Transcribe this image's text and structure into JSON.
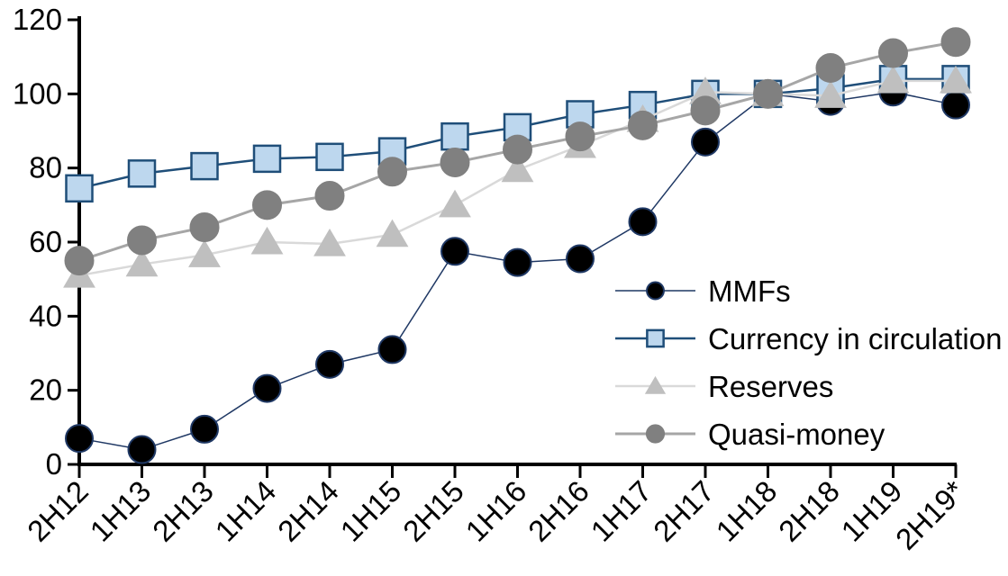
{
  "chart_data": {
    "type": "line",
    "title": "",
    "xlabel": "",
    "ylabel": "",
    "grid": false,
    "legend_position": "center-right",
    "x_tick_rotation": -45,
    "axis_color": "#000000",
    "text_color": "#000000",
    "ylim": [
      0,
      120
    ],
    "yticks": [
      0,
      20,
      40,
      60,
      80,
      100,
      120
    ],
    "categories": [
      "2H12",
      "1H13",
      "2H13",
      "1H14",
      "2H14",
      "1H15",
      "2H15",
      "1H16",
      "2H16",
      "1H17",
      "2H17",
      "1H18",
      "2H18",
      "1H19",
      "2H19*"
    ],
    "series": [
      {
        "name": "MMFs",
        "values": [
          7,
          4,
          9.5,
          20.5,
          27,
          31,
          57.5,
          54.5,
          55.5,
          65.5,
          87,
          100,
          98,
          100.5,
          97
        ],
        "line_color": "#1F3864",
        "line_width": 1.5,
        "marker": {
          "shape": "circle",
          "size": 30,
          "fill": "#000000",
          "stroke": "#1F3864",
          "stroke_width": 2
        }
      },
      {
        "name": "Currency in circulation",
        "values": [
          74.5,
          78.5,
          80.5,
          82.5,
          83,
          84.5,
          88.5,
          91,
          94.5,
          97,
          100,
          100,
          101.5,
          104,
          104
        ],
        "line_color": "#1F4E79",
        "line_width": 2.5,
        "marker": {
          "shape": "square",
          "size": 29,
          "fill": "#BDD7EE",
          "stroke": "#1F4E79",
          "stroke_width": 2.5
        }
      },
      {
        "name": "Reserves",
        "values": [
          51,
          54,
          56.5,
          60,
          59.5,
          62,
          70,
          79.5,
          86,
          93,
          100.5,
          100,
          99.5,
          103.5,
          103.5
        ],
        "line_color": "#D9D9D9",
        "line_width": 2.5,
        "marker": {
          "shape": "triangle",
          "size": 31,
          "fill": "#BFBFBF",
          "stroke": "#BFBFBF",
          "stroke_width": 1
        }
      },
      {
        "name": "Quasi-money",
        "values": [
          55,
          60.5,
          64,
          70,
          72.5,
          79,
          81.5,
          85,
          88.5,
          91.5,
          95.5,
          100,
          107,
          111,
          114
        ],
        "line_color": "#A6A6A6",
        "line_width": 3,
        "marker": {
          "shape": "circle",
          "size": 32,
          "fill": "#808080",
          "stroke": "#808080",
          "stroke_width": 1
        }
      }
    ]
  }
}
